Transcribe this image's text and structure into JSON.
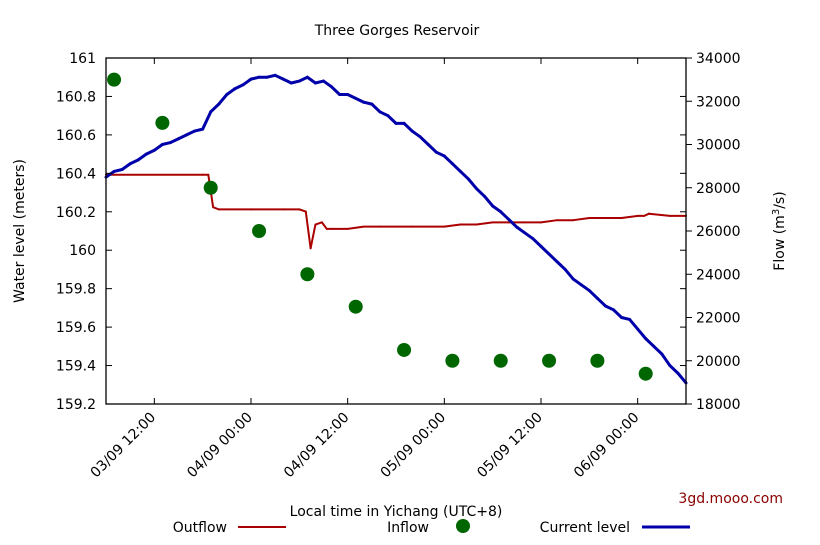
{
  "chart_data": {
    "type": "line",
    "title": "Three Gorges Reservoir",
    "xlabel": "Local time in Yichang (UTC+8)",
    "ylabel": "Water level (meters)",
    "y2label_main": "Flow (m",
    "y2label_sup": "3",
    "y2label_end": "/s)",
    "watermark": "3gd.mooo.com",
    "x_unit": "hours since 03/09 00:00",
    "xlim": [
      6,
      78
    ],
    "ylim": [
      159.2,
      161
    ],
    "y2lim": [
      18000,
      34000
    ],
    "x_ticks": [
      {
        "x": 12,
        "label": "03/09 12:00"
      },
      {
        "x": 24,
        "label": "04/09 00:00"
      },
      {
        "x": 36,
        "label": "04/09 12:00"
      },
      {
        "x": 48,
        "label": "05/09 00:00"
      },
      {
        "x": 60,
        "label": "05/09 12:00"
      },
      {
        "x": 72,
        "label": "06/09 00:00"
      }
    ],
    "y_ticks": [
      "161",
      "160.8",
      "160.6",
      "160.4",
      "160.2",
      "160",
      "159.8",
      "159.6",
      "159.4",
      "159.2"
    ],
    "y_tick_values": [
      161,
      160.8,
      160.6,
      160.4,
      160.2,
      160,
      159.8,
      159.6,
      159.4,
      159.2
    ],
    "y2_ticks": [
      "34000",
      "32000",
      "30000",
      "28000",
      "26000",
      "24000",
      "22000",
      "20000",
      "18000"
    ],
    "y2_tick_values": [
      34000,
      32000,
      30000,
      28000,
      26000,
      24000,
      22000,
      20000,
      18000
    ],
    "legend": {
      "outflow": "Outflow",
      "inflow": "Inflow",
      "current_level": "Current level"
    },
    "series": [
      {
        "name": "Outflow",
        "axis": "right",
        "style": "line",
        "color": "#aa0000",
        "x": [
          6,
          18,
          18.7,
          19.3,
          20,
          24,
          28,
          30,
          30.8,
          31.4,
          32,
          32.8,
          33.4,
          34,
          36,
          38,
          40,
          44,
          48,
          50,
          52,
          54,
          56,
          58,
          60,
          62,
          64,
          66,
          68,
          70,
          72,
          72.8,
          73.4,
          76,
          78
        ],
        "values": [
          28600,
          28600,
          28600,
          27100,
          27000,
          27000,
          27000,
          27000,
          26900,
          25200,
          26300,
          26400,
          26100,
          26100,
          26100,
          26200,
          26200,
          26200,
          26200,
          26300,
          26300,
          26400,
          26400,
          26400,
          26400,
          26500,
          26500,
          26600,
          26600,
          26600,
          26700,
          26700,
          26800,
          26700,
          26700
        ]
      },
      {
        "name": "Inflow",
        "axis": "right",
        "style": "points",
        "color": "#006600",
        "x": [
          7,
          13,
          19,
          25,
          31,
          37,
          43,
          49,
          55,
          61,
          67,
          73
        ],
        "values": [
          33000,
          31000,
          28000,
          26000,
          24000,
          22500,
          20500,
          20000,
          20000,
          20000,
          20000,
          19400
        ]
      },
      {
        "name": "Current level",
        "axis": "left",
        "style": "line",
        "color": "#0000aa",
        "x": [
          6,
          7,
          8,
          9,
          10,
          11,
          12,
          13,
          14,
          15,
          16,
          17,
          18,
          19,
          20,
          21,
          22,
          23,
          24,
          25,
          26,
          27,
          28,
          29,
          30,
          31,
          32,
          33,
          34,
          35,
          36,
          37,
          38,
          39,
          40,
          41,
          42,
          43,
          44,
          45,
          46,
          47,
          48,
          49,
          50,
          51,
          52,
          53,
          54,
          55,
          56,
          57,
          58,
          59,
          60,
          61,
          62,
          63,
          64,
          65,
          66,
          67,
          68,
          69,
          70,
          71,
          72,
          73,
          74,
          75,
          76,
          77,
          78
        ],
        "values": [
          160.38,
          160.41,
          160.42,
          160.45,
          160.47,
          160.5,
          160.52,
          160.55,
          160.56,
          160.58,
          160.6,
          160.62,
          160.63,
          160.72,
          160.76,
          160.81,
          160.84,
          160.86,
          160.89,
          160.9,
          160.9,
          160.91,
          160.89,
          160.87,
          160.88,
          160.9,
          160.87,
          160.88,
          160.85,
          160.81,
          160.81,
          160.79,
          160.77,
          160.76,
          160.72,
          160.7,
          160.66,
          160.66,
          160.62,
          160.59,
          160.55,
          160.51,
          160.49,
          160.45,
          160.41,
          160.37,
          160.32,
          160.28,
          160.23,
          160.2,
          160.16,
          160.12,
          160.09,
          160.06,
          160.02,
          159.98,
          159.94,
          159.9,
          159.85,
          159.82,
          159.79,
          159.75,
          159.71,
          159.69,
          159.65,
          159.64,
          159.59,
          159.54,
          159.5,
          159.46,
          159.4,
          159.36,
          159.31
        ]
      }
    ]
  }
}
